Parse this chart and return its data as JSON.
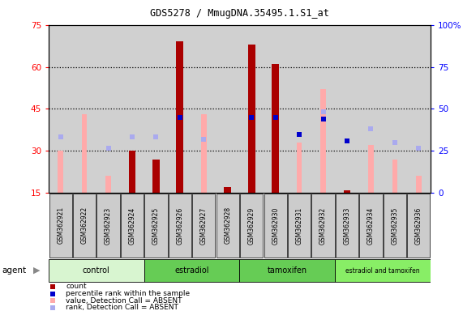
{
  "title": "GDS5278 / MmugDNA.35495.1.S1_at",
  "samples": [
    "GSM362921",
    "GSM362922",
    "GSM362923",
    "GSM362924",
    "GSM362925",
    "GSM362926",
    "GSM362927",
    "GSM362928",
    "GSM362929",
    "GSM362930",
    "GSM362931",
    "GSM362932",
    "GSM362933",
    "GSM362934",
    "GSM362935",
    "GSM362936"
  ],
  "count_values": [
    null,
    null,
    null,
    30,
    27,
    69,
    null,
    17,
    68,
    61,
    null,
    null,
    16,
    null,
    null,
    null
  ],
  "rank_values": [
    null,
    null,
    null,
    null,
    null,
    45,
    null,
    null,
    45,
    45,
    35,
    44,
    31,
    null,
    null,
    null
  ],
  "absent_value": [
    30,
    43,
    21,
    null,
    null,
    null,
    43,
    null,
    null,
    null,
    33,
    52,
    null,
    32,
    27,
    21
  ],
  "absent_rank": [
    35,
    null,
    31,
    35,
    35,
    null,
    34,
    null,
    null,
    null,
    null,
    44,
    null,
    38,
    33,
    31
  ],
  "groups": [
    {
      "label": "control",
      "start": 0,
      "end": 3,
      "color": "#d8f5d0"
    },
    {
      "label": "estradiol",
      "start": 4,
      "end": 7,
      "color": "#66cc55"
    },
    {
      "label": "tamoxifen",
      "start": 8,
      "end": 11,
      "color": "#66cc55"
    },
    {
      "label": "estradiol and tamoxifen",
      "start": 12,
      "end": 15,
      "color": "#88ee66"
    }
  ],
  "ylim_left": [
    15,
    75
  ],
  "ylim_right": [
    0,
    100
  ],
  "yticks_left": [
    15,
    30,
    45,
    60,
    75
  ],
  "yticks_right": [
    0,
    25,
    50,
    75,
    100
  ],
  "bar_color": "#aa0000",
  "rank_color": "#0000cc",
  "absent_val_color": "#ffaaaa",
  "absent_rank_color": "#aaaaee",
  "col_bg_color": "#d0d0d0",
  "plot_bg": "#ffffff"
}
